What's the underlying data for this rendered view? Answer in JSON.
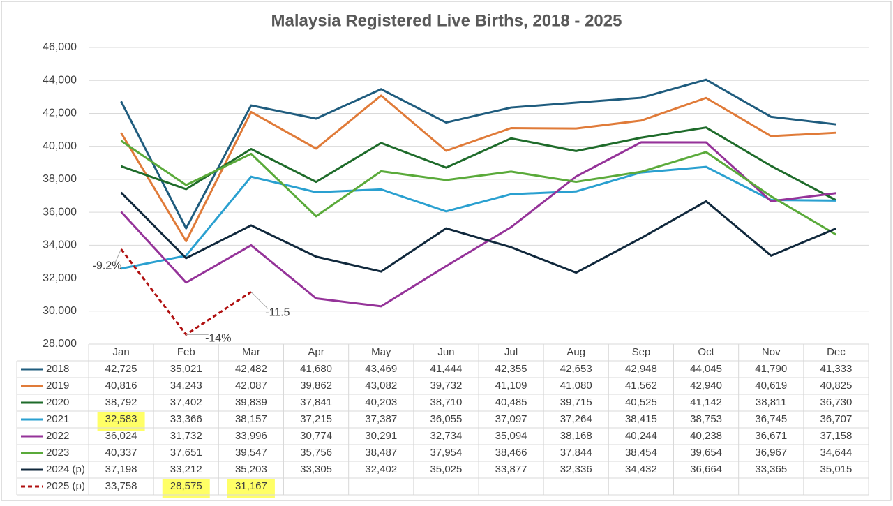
{
  "chart_data": {
    "type": "line",
    "title": "Malaysia Registered Live Births, 2018 - 2025",
    "categories": [
      "Jan",
      "Feb",
      "Mar",
      "Apr",
      "May",
      "Jun",
      "Jul",
      "Aug",
      "Sep",
      "Oct",
      "Nov",
      "Dec"
    ],
    "ylim": [
      28000,
      46000
    ],
    "yticks": [
      {
        "value": 28000,
        "label": "28,000"
      },
      {
        "value": 30000,
        "label": "30,000"
      },
      {
        "value": 32000,
        "label": "32,000"
      },
      {
        "value": 34000,
        "label": "34,000"
      },
      {
        "value": 36000,
        "label": "36,000"
      },
      {
        "value": 38000,
        "label": "38,000"
      },
      {
        "value": 40000,
        "label": "40,000"
      },
      {
        "value": 42000,
        "label": "42,000"
      },
      {
        "value": 44000,
        "label": "44,000"
      },
      {
        "value": 46000,
        "label": "46,000"
      }
    ],
    "grid": true,
    "data_table": true,
    "highlight_color": "#ffff66",
    "highlights": [
      {
        "series": 3,
        "index": 0
      },
      {
        "series": 7,
        "index": 1
      },
      {
        "series": 7,
        "index": 2
      }
    ],
    "series": [
      {
        "name": "2018",
        "color": "#1f5c7e",
        "dash": false,
        "values": [
          42725,
          35021,
          42482,
          41680,
          43469,
          41444,
          42355,
          42653,
          42948,
          44045,
          41790,
          41333
        ],
        "value_labels": [
          "42,725",
          "35,021",
          "42,482",
          "41,680",
          "43,469",
          "41,444",
          "42,355",
          "42,653",
          "42,948",
          "44,045",
          "41,790",
          "41,333"
        ]
      },
      {
        "name": "2019",
        "color": "#e07b39",
        "dash": false,
        "values": [
          40816,
          34243,
          42087,
          39862,
          43082,
          39732,
          41109,
          41080,
          41562,
          42940,
          40619,
          40825
        ],
        "value_labels": [
          "40,816",
          "34,243",
          "42,087",
          "39,862",
          "43,082",
          "39,732",
          "41,109",
          "41,080",
          "41,562",
          "42,940",
          "40,619",
          "40,825"
        ]
      },
      {
        "name": "2020",
        "color": "#1e6b2a",
        "dash": false,
        "values": [
          38792,
          37402,
          39839,
          37841,
          40203,
          38710,
          40485,
          39715,
          40525,
          41142,
          38811,
          36730
        ],
        "value_labels": [
          "38,792",
          "37,402",
          "39,839",
          "37,841",
          "40,203",
          "38,710",
          "40,485",
          "39,715",
          "40,525",
          "41,142",
          "38,811",
          "36,730"
        ]
      },
      {
        "name": "2021",
        "color": "#2aa0d0",
        "dash": false,
        "values": [
          32583,
          33366,
          38157,
          37215,
          37387,
          36055,
          37097,
          37264,
          38415,
          38753,
          36745,
          36707
        ],
        "value_labels": [
          "32,583",
          "33,366",
          "38,157",
          "37,215",
          "37,387",
          "36,055",
          "37,097",
          "37,264",
          "38,415",
          "38,753",
          "36,745",
          "36,707"
        ]
      },
      {
        "name": "2022",
        "color": "#953399",
        "dash": false,
        "values": [
          36024,
          31732,
          33996,
          30774,
          30291,
          32734,
          35094,
          38168,
          40244,
          40238,
          36671,
          37158
        ],
        "value_labels": [
          "36,024",
          "31,732",
          "33,996",
          "30,774",
          "30,291",
          "32,734",
          "35,094",
          "38,168",
          "40,244",
          "40,238",
          "36,671",
          "37,158"
        ]
      },
      {
        "name": "2023",
        "color": "#5aaa3a",
        "dash": false,
        "values": [
          40337,
          37651,
          39547,
          35756,
          38487,
          37954,
          38466,
          37844,
          38454,
          39654,
          36967,
          34644
        ],
        "value_labels": [
          "40,337",
          "37,651",
          "39,547",
          "35,756",
          "38,487",
          "37,954",
          "38,466",
          "37,844",
          "38,454",
          "39,654",
          "36,967",
          "34,644"
        ]
      },
      {
        "name": "2024 (p)",
        "color": "#10283c",
        "dash": false,
        "values": [
          37198,
          33212,
          35203,
          33305,
          32402,
          35025,
          33877,
          32336,
          34432,
          36664,
          33365,
          35015
        ],
        "value_labels": [
          "37,198",
          "33,212",
          "35,203",
          "33,305",
          "32,402",
          "35,025",
          "33,877",
          "32,336",
          "34,432",
          "36,664",
          "33,365",
          "35,015"
        ]
      },
      {
        "name": "2025 (p)",
        "color": "#b01010",
        "dash": true,
        "values": [
          33758,
          28575,
          31167,
          null,
          null,
          null,
          null,
          null,
          null,
          null,
          null,
          null
        ],
        "value_labels": [
          "33,758",
          "28,575",
          "31,167",
          null,
          null,
          null,
          null,
          null,
          null,
          null,
          null,
          null
        ]
      }
    ],
    "annotations": [
      {
        "text": "-9.2%",
        "series": 7,
        "index": 0
      },
      {
        "text": "-14%",
        "series": 7,
        "index": 1
      },
      {
        "text": "-11.5",
        "series": 7,
        "index": 2
      }
    ]
  }
}
